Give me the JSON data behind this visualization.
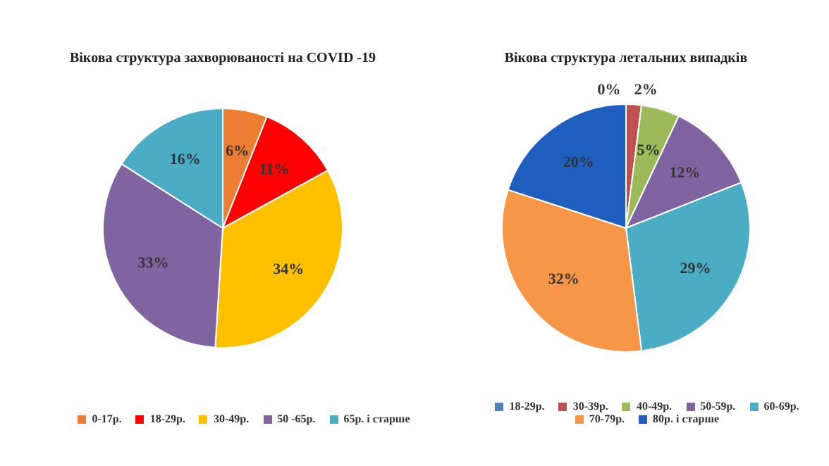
{
  "chart_data": [
    {
      "type": "pie",
      "title": "Вікова структура захворюваності на COVID -19",
      "categories": [
        "0-17р.",
        "18-29р.",
        "30-49р.",
        "50 -65р.",
        "65р. і старше"
      ],
      "values": [
        6,
        11,
        34,
        33,
        16
      ],
      "value_labels": [
        "6%",
        "11%",
        "34%",
        "33%",
        "16%"
      ],
      "colors": [
        "#ed7d31",
        "#ff0000",
        "#ffc000",
        "#8064a2",
        "#4bacc6"
      ],
      "legend": "bottom"
    },
    {
      "type": "pie",
      "title": "Вікова структура летальних випадків",
      "categories": [
        "18-29р.",
        "30-39р.",
        "40-49р.",
        "50-59р.",
        "60-69р.",
        "70-79р.",
        "80р. і старше"
      ],
      "values": [
        0,
        2,
        5,
        12,
        29,
        32,
        20
      ],
      "value_labels": [
        "0%",
        "2%",
        "5%",
        "12%",
        "29%",
        "32%",
        "20%"
      ],
      "colors": [
        "#4f81bd",
        "#c0504d",
        "#9bbb59",
        "#8064a2",
        "#4bacc6",
        "#f79646",
        "#1f5fbf"
      ],
      "legend": "bottom"
    }
  ]
}
